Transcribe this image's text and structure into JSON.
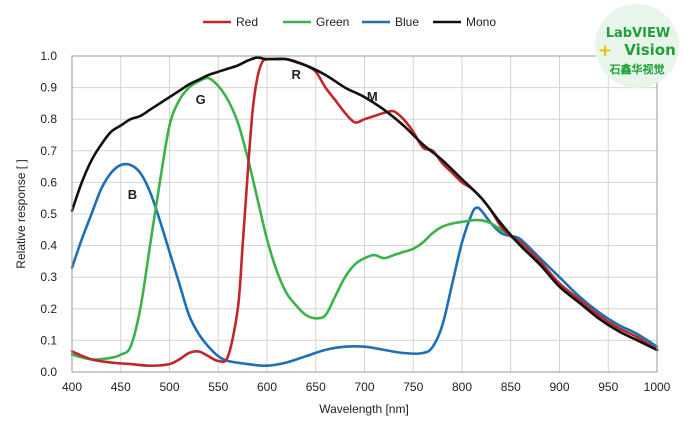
{
  "chart_data": {
    "type": "line",
    "xlabel": "Wavelength [nm]",
    "ylabel": "Relative response [ ]",
    "xlim": [
      400,
      1000
    ],
    "ylim": [
      0.0,
      1.0
    ],
    "xticks": [
      "400",
      "450",
      "500",
      "550",
      "600",
      "650",
      "700",
      "750",
      "800",
      "850",
      "900",
      "950",
      "1000"
    ],
    "yticks": [
      "0.0",
      "0.1",
      "0.2",
      "0.3",
      "0.4",
      "0.5",
      "0.6",
      "0.7",
      "0.8",
      "0.9",
      "1.0"
    ],
    "grid": true,
    "legend_position": "top",
    "series": [
      {
        "name": "Red",
        "color": "#c0272d",
        "label": "R",
        "label_at": [
          630,
          0.94
        ],
        "points": [
          [
            400,
            0.065
          ],
          [
            420,
            0.04
          ],
          [
            440,
            0.03
          ],
          [
            460,
            0.025
          ],
          [
            480,
            0.02
          ],
          [
            500,
            0.025
          ],
          [
            510,
            0.04
          ],
          [
            520,
            0.06
          ],
          [
            530,
            0.065
          ],
          [
            540,
            0.05
          ],
          [
            550,
            0.035
          ],
          [
            560,
            0.05
          ],
          [
            570,
            0.2
          ],
          [
            575,
            0.4
          ],
          [
            580,
            0.62
          ],
          [
            585,
            0.82
          ],
          [
            590,
            0.93
          ],
          [
            595,
            0.98
          ],
          [
            600,
            0.99
          ],
          [
            610,
            0.99
          ],
          [
            620,
            0.99
          ],
          [
            630,
            0.98
          ],
          [
            640,
            0.97
          ],
          [
            650,
            0.95
          ],
          [
            660,
            0.9
          ],
          [
            670,
            0.86
          ],
          [
            680,
            0.82
          ],
          [
            690,
            0.79
          ],
          [
            700,
            0.8
          ],
          [
            710,
            0.81
          ],
          [
            720,
            0.82
          ],
          [
            730,
            0.825
          ],
          [
            740,
            0.8
          ],
          [
            750,
            0.76
          ],
          [
            760,
            0.71
          ],
          [
            770,
            0.7
          ],
          [
            780,
            0.66
          ],
          [
            790,
            0.63
          ],
          [
            800,
            0.6
          ],
          [
            810,
            0.58
          ],
          [
            820,
            0.55
          ],
          [
            830,
            0.51
          ],
          [
            840,
            0.46
          ],
          [
            850,
            0.43
          ],
          [
            860,
            0.41
          ],
          [
            880,
            0.35
          ],
          [
            900,
            0.28
          ],
          [
            920,
            0.23
          ],
          [
            940,
            0.18
          ],
          [
            960,
            0.14
          ],
          [
            980,
            0.11
          ],
          [
            1000,
            0.07
          ]
        ]
      },
      {
        "name": "Green",
        "color": "#3bb34a",
        "label": "G",
        "label_at": [
          532,
          0.86
        ],
        "points": [
          [
            400,
            0.055
          ],
          [
            420,
            0.04
          ],
          [
            440,
            0.045
          ],
          [
            450,
            0.055
          ],
          [
            460,
            0.08
          ],
          [
            470,
            0.2
          ],
          [
            480,
            0.4
          ],
          [
            490,
            0.6
          ],
          [
            500,
            0.78
          ],
          [
            510,
            0.86
          ],
          [
            520,
            0.9
          ],
          [
            530,
            0.92
          ],
          [
            540,
            0.93
          ],
          [
            550,
            0.905
          ],
          [
            560,
            0.86
          ],
          [
            570,
            0.79
          ],
          [
            580,
            0.68
          ],
          [
            590,
            0.55
          ],
          [
            600,
            0.42
          ],
          [
            610,
            0.32
          ],
          [
            620,
            0.25
          ],
          [
            630,
            0.21
          ],
          [
            640,
            0.18
          ],
          [
            650,
            0.17
          ],
          [
            660,
            0.18
          ],
          [
            670,
            0.24
          ],
          [
            680,
            0.3
          ],
          [
            690,
            0.34
          ],
          [
            700,
            0.36
          ],
          [
            710,
            0.37
          ],
          [
            720,
            0.36
          ],
          [
            730,
            0.37
          ],
          [
            740,
            0.38
          ],
          [
            750,
            0.39
          ],
          [
            760,
            0.41
          ],
          [
            770,
            0.44
          ],
          [
            780,
            0.46
          ],
          [
            790,
            0.47
          ],
          [
            800,
            0.475
          ],
          [
            810,
            0.48
          ],
          [
            820,
            0.48
          ],
          [
            830,
            0.47
          ],
          [
            840,
            0.45
          ],
          [
            850,
            0.43
          ],
          [
            860,
            0.4
          ],
          [
            880,
            0.34
          ],
          [
            900,
            0.28
          ],
          [
            920,
            0.23
          ],
          [
            940,
            0.18
          ],
          [
            960,
            0.14
          ],
          [
            980,
            0.11
          ],
          [
            1000,
            0.07
          ]
        ]
      },
      {
        "name": "Blue",
        "color": "#1f6fb5",
        "label": "B",
        "label_at": [
          462,
          0.56
        ],
        "points": [
          [
            400,
            0.33
          ],
          [
            410,
            0.42
          ],
          [
            420,
            0.5
          ],
          [
            430,
            0.58
          ],
          [
            440,
            0.63
          ],
          [
            450,
            0.655
          ],
          [
            460,
            0.655
          ],
          [
            470,
            0.63
          ],
          [
            480,
            0.57
          ],
          [
            490,
            0.48
          ],
          [
            500,
            0.38
          ],
          [
            510,
            0.28
          ],
          [
            520,
            0.18
          ],
          [
            530,
            0.12
          ],
          [
            540,
            0.08
          ],
          [
            550,
            0.05
          ],
          [
            560,
            0.035
          ],
          [
            580,
            0.025
          ],
          [
            600,
            0.02
          ],
          [
            620,
            0.03
          ],
          [
            640,
            0.05
          ],
          [
            660,
            0.07
          ],
          [
            680,
            0.08
          ],
          [
            700,
            0.08
          ],
          [
            720,
            0.07
          ],
          [
            740,
            0.06
          ],
          [
            760,
            0.06
          ],
          [
            770,
            0.08
          ],
          [
            780,
            0.15
          ],
          [
            790,
            0.28
          ],
          [
            800,
            0.41
          ],
          [
            810,
            0.5
          ],
          [
            815,
            0.52
          ],
          [
            820,
            0.51
          ],
          [
            830,
            0.47
          ],
          [
            840,
            0.44
          ],
          [
            850,
            0.43
          ],
          [
            860,
            0.42
          ],
          [
            880,
            0.36
          ],
          [
            900,
            0.3
          ],
          [
            920,
            0.24
          ],
          [
            940,
            0.19
          ],
          [
            960,
            0.15
          ],
          [
            980,
            0.12
          ],
          [
            1000,
            0.08
          ]
        ]
      },
      {
        "name": "Mono",
        "color": "#111111",
        "label": "M",
        "label_at": [
          708,
          0.87
        ],
        "points": [
          [
            400,
            0.51
          ],
          [
            410,
            0.6
          ],
          [
            420,
            0.67
          ],
          [
            430,
            0.72
          ],
          [
            440,
            0.76
          ],
          [
            450,
            0.78
          ],
          [
            460,
            0.8
          ],
          [
            470,
            0.81
          ],
          [
            480,
            0.83
          ],
          [
            490,
            0.85
          ],
          [
            500,
            0.87
          ],
          [
            510,
            0.89
          ],
          [
            520,
            0.91
          ],
          [
            530,
            0.925
          ],
          [
            540,
            0.94
          ],
          [
            550,
            0.95
          ],
          [
            560,
            0.96
          ],
          [
            570,
            0.97
          ],
          [
            580,
            0.985
          ],
          [
            590,
            0.995
          ],
          [
            600,
            0.99
          ],
          [
            620,
            0.99
          ],
          [
            640,
            0.97
          ],
          [
            660,
            0.94
          ],
          [
            680,
            0.9
          ],
          [
            700,
            0.87
          ],
          [
            720,
            0.83
          ],
          [
            740,
            0.78
          ],
          [
            760,
            0.72
          ],
          [
            780,
            0.67
          ],
          [
            800,
            0.61
          ],
          [
            820,
            0.55
          ],
          [
            840,
            0.47
          ],
          [
            860,
            0.4
          ],
          [
            880,
            0.34
          ],
          [
            900,
            0.27
          ],
          [
            920,
            0.22
          ],
          [
            940,
            0.17
          ],
          [
            960,
            0.13
          ],
          [
            980,
            0.1
          ],
          [
            1000,
            0.07
          ]
        ]
      }
    ]
  },
  "logo": {
    "line1": "LabVIEW",
    "line2": "Vision",
    "line3": "石鑫华视觉",
    "plus_symbol": "+",
    "background_color": "#e8f5ea",
    "text_color": "#1fa03a",
    "plus_color": "#f2c200"
  }
}
